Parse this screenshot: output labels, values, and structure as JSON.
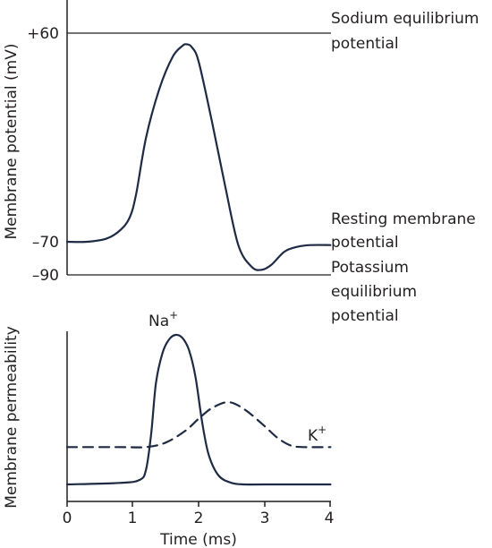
{
  "chart_data": [
    {
      "type": "line",
      "title": "",
      "ylabel": "Membrane potential (mV)",
      "xlim": [
        0,
        4
      ],
      "ylim": [
        -90,
        60
      ],
      "y_tick_labels": [
        "+60",
        "–70",
        "–90"
      ],
      "reference_lines": [
        {
          "y": 60,
          "label_line1": "Sodium equilibrium",
          "label_line2": "potential"
        },
        {
          "y": -90,
          "label_line1": "Potassium",
          "label_line2": "equilibrium",
          "label_line3": "potential"
        }
      ],
      "annotations": [
        {
          "y": -70,
          "label_line1": "Resting membrane",
          "label_line2": "potential"
        }
      ],
      "series": [
        {
          "x": [
            0,
            0.3,
            0.6,
            0.8,
            0.95,
            1.05,
            1.2,
            1.4,
            1.6,
            1.75,
            1.82,
            1.9,
            2.0,
            2.2,
            2.4,
            2.6,
            2.8,
            2.95,
            3.1,
            3.3,
            3.5,
            3.7,
            4.0
          ],
          "y": [
            -70,
            -70,
            -68,
            -63,
            -55,
            -40,
            -5,
            25,
            45,
            52,
            53,
            51,
            42,
            5,
            -35,
            -72,
            -85,
            -87,
            -84,
            -76,
            -73,
            -72,
            -72
          ]
        }
      ]
    },
    {
      "type": "line",
      "title": "",
      "xlabel": "Time (ms)",
      "ylabel": "Membrane permeability",
      "xlim": [
        0,
        4
      ],
      "x_tick_labels": [
        "0",
        "1",
        "2",
        "3",
        "4"
      ],
      "series": [
        {
          "name": "Na",
          "superscript": "+",
          "style": "solid",
          "x": [
            0,
            0.8,
            1.1,
            1.2,
            1.28,
            1.35,
            1.45,
            1.55,
            1.65,
            1.75,
            1.85,
            1.95,
            2.05,
            2.15,
            2.3,
            2.5,
            2.7,
            3.0,
            4.0
          ],
          "y": [
            0,
            0.01,
            0.03,
            0.1,
            0.35,
            0.68,
            0.88,
            0.97,
            1.0,
            0.98,
            0.9,
            0.72,
            0.42,
            0.2,
            0.06,
            0.01,
            0.0,
            0.0,
            0.0
          ]
        },
        {
          "name": "K",
          "superscript": "+",
          "style": "dashed",
          "x": [
            0,
            0.8,
            1.2,
            1.5,
            1.8,
            2.0,
            2.2,
            2.45,
            2.7,
            3.0,
            3.2,
            3.4,
            3.6,
            4.0
          ],
          "y": [
            0.25,
            0.25,
            0.25,
            0.28,
            0.36,
            0.44,
            0.51,
            0.55,
            0.5,
            0.39,
            0.31,
            0.26,
            0.25,
            0.25
          ]
        }
      ]
    }
  ]
}
